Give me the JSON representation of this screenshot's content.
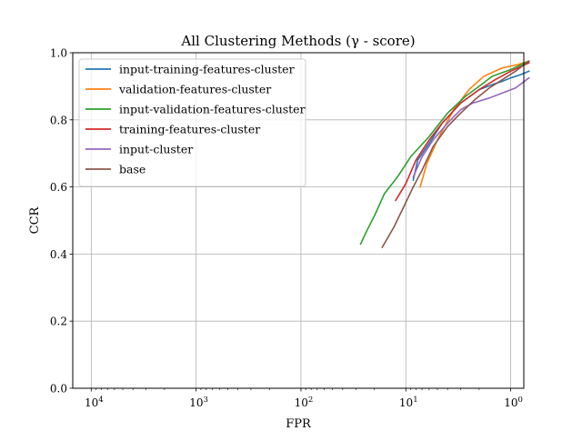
{
  "chart_data": {
    "type": "line",
    "title": "All Clustering Methods (γ - score)",
    "xlabel": "FPR",
    "ylabel": "CCR",
    "xscale": "log",
    "x_reversed": true,
    "xlim": [
      15000,
      0.75
    ],
    "ylim": [
      0.0,
      1.0
    ],
    "xticks": [
      {
        "value": 10000,
        "base": "10",
        "exp": "4"
      },
      {
        "value": 1000,
        "base": "10",
        "exp": "3"
      },
      {
        "value": 100,
        "base": "10",
        "exp": "2"
      },
      {
        "value": 10,
        "base": "10",
        "exp": "1"
      },
      {
        "value": 1,
        "base": "10",
        "exp": "0"
      }
    ],
    "yticks": [
      "0.0",
      "0.2",
      "0.4",
      "0.6",
      "0.8",
      "1.0"
    ],
    "grid": true,
    "legend_position": "top-left",
    "series": [
      {
        "name": "input-training-features-cluster",
        "color": "#1f77b4",
        "points": [
          [
            8.5,
            0.62
          ],
          [
            7.7,
            0.68
          ],
          [
            6,
            0.73
          ],
          [
            4.5,
            0.79
          ],
          [
            3,
            0.85
          ],
          [
            2,
            0.89
          ],
          [
            1.5,
            0.905
          ],
          [
            1.2,
            0.915
          ],
          [
            1.0,
            0.925
          ],
          [
            0.8,
            0.935
          ],
          [
            0.67,
            0.945
          ]
        ]
      },
      {
        "name": "validation-features-cluster",
        "color": "#ff7f0e",
        "points": [
          [
            7.3,
            0.6
          ],
          [
            6.3,
            0.67
          ],
          [
            5,
            0.74
          ],
          [
            3.5,
            0.83
          ],
          [
            2.5,
            0.89
          ],
          [
            1.8,
            0.93
          ],
          [
            1.2,
            0.955
          ],
          [
            0.85,
            0.965
          ],
          [
            0.67,
            0.975
          ]
        ]
      },
      {
        "name": "input-validation-features-cluster",
        "color": "#2ca02c",
        "points": [
          [
            27,
            0.43
          ],
          [
            23.5,
            0.47
          ],
          [
            19.5,
            0.52
          ],
          [
            16,
            0.58
          ],
          [
            12,
            0.63
          ],
          [
            9,
            0.69
          ],
          [
            6,
            0.75
          ],
          [
            4,
            0.82
          ],
          [
            2.7,
            0.87
          ],
          [
            2,
            0.9
          ],
          [
            1.5,
            0.93
          ],
          [
            1.0,
            0.95
          ],
          [
            0.67,
            0.975
          ]
        ]
      },
      {
        "name": "training-features-cluster",
        "color": "#d62728",
        "points": [
          [
            12.5,
            0.56
          ],
          [
            10,
            0.61
          ],
          [
            8,
            0.68
          ],
          [
            6,
            0.74
          ],
          [
            4.5,
            0.79
          ],
          [
            3,
            0.85
          ],
          [
            2,
            0.89
          ],
          [
            1.4,
            0.92
          ],
          [
            1.0,
            0.945
          ],
          [
            0.67,
            0.97
          ]
        ]
      },
      {
        "name": "input-cluster",
        "color": "#9467bd",
        "points": [
          [
            8.5,
            0.63
          ],
          [
            7,
            0.69
          ],
          [
            5.5,
            0.74
          ],
          [
            4,
            0.79
          ],
          [
            3,
            0.83
          ],
          [
            2.3,
            0.85
          ],
          [
            1.6,
            0.865
          ],
          [
            1.2,
            0.88
          ],
          [
            0.9,
            0.895
          ],
          [
            0.67,
            0.925
          ]
        ]
      },
      {
        "name": "base",
        "color": "#8c564b",
        "points": [
          [
            16.8,
            0.42
          ],
          [
            13,
            0.48
          ],
          [
            10.5,
            0.54
          ],
          [
            8.5,
            0.6
          ],
          [
            7,
            0.65
          ],
          [
            5.5,
            0.72
          ],
          [
            4,
            0.78
          ],
          [
            3,
            0.82
          ],
          [
            2.2,
            0.86
          ],
          [
            1.6,
            0.895
          ],
          [
            1.2,
            0.92
          ],
          [
            0.9,
            0.945
          ],
          [
            0.67,
            0.975
          ]
        ]
      }
    ]
  }
}
